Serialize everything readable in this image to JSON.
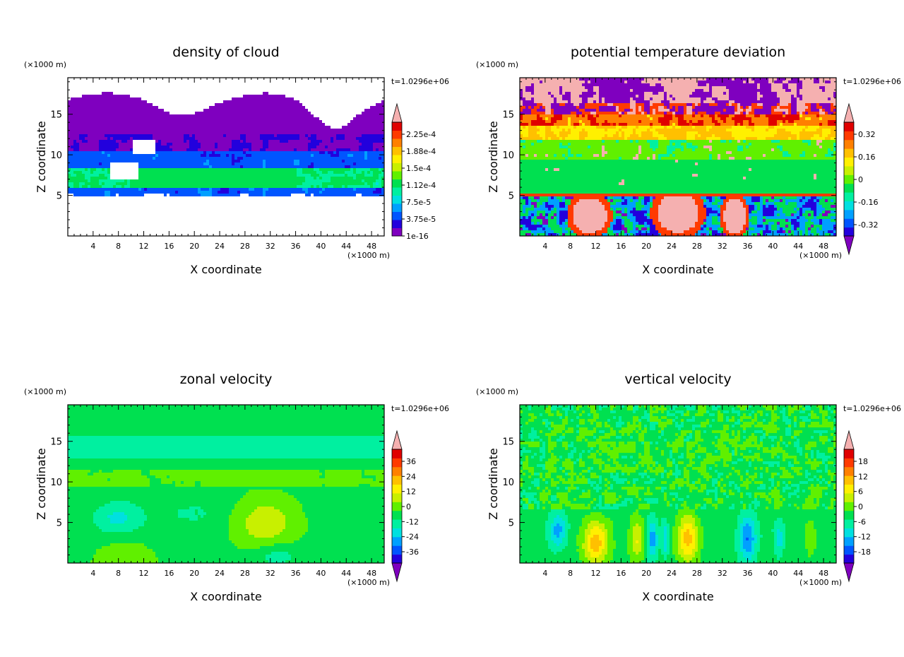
{
  "chart_data": [
    {
      "type": "heatmap",
      "title": "density of cloud",
      "xlabel": "X coordinate",
      "ylabel": "Z coordinate",
      "x_units": "(×1000 m)",
      "y_units": "(×1000 m)",
      "time_label": "t=1.0296e+06",
      "xlim": [
        0,
        50
      ],
      "ylim": [
        0,
        19.5
      ],
      "x_ticks": [
        "4",
        "8",
        "12",
        "16",
        "20",
        "24",
        "28",
        "32",
        "36",
        "40",
        "44",
        "48"
      ],
      "y_ticks": [
        "5",
        "10",
        "15"
      ],
      "colorbar_labels": [
        "1e-16",
        "3.75e-5",
        "7.5e-5",
        "1.12e-4",
        "1.5e-4",
        "1.88e-4",
        "2.25e-4"
      ],
      "colorbar_arrow_low": false
    },
    {
      "type": "heatmap",
      "title": "potential temperature deviation",
      "xlabel": "X coordinate",
      "ylabel": "Z coordinate",
      "x_units": "(×1000 m)",
      "y_units": "(×1000 m)",
      "time_label": "t=1.0296e+06",
      "xlim": [
        0,
        50
      ],
      "ylim": [
        0,
        19.5
      ],
      "x_ticks": [
        "4",
        "8",
        "12",
        "16",
        "20",
        "24",
        "28",
        "32",
        "36",
        "40",
        "44",
        "48"
      ],
      "y_ticks": [
        "5",
        "10",
        "15"
      ],
      "colorbar_labels": [
        "-0.32",
        "-0.16",
        "0",
        "0.16",
        "0.32"
      ],
      "colorbar_arrow_low": true
    },
    {
      "type": "heatmap",
      "title": "zonal velocity",
      "xlabel": "X coordinate",
      "ylabel": "Z coordinate",
      "x_units": "(×1000 m)",
      "y_units": "(×1000 m)",
      "time_label": "t=1.0296e+06",
      "xlim": [
        0,
        50
      ],
      "ylim": [
        0,
        19.5
      ],
      "x_ticks": [
        "4",
        "8",
        "12",
        "16",
        "20",
        "24",
        "28",
        "32",
        "36",
        "40",
        "44",
        "48"
      ],
      "y_ticks": [
        "5",
        "10",
        "15"
      ],
      "colorbar_labels": [
        "-36",
        "-24",
        "-12",
        "0",
        "12",
        "24",
        "36"
      ],
      "colorbar_arrow_low": true
    },
    {
      "type": "heatmap",
      "title": "vertical velocity",
      "xlabel": "X coordinate",
      "ylabel": "Z coordinate",
      "x_units": "(×1000 m)",
      "y_units": "(×1000 m)",
      "time_label": "t=1.0296e+06",
      "xlim": [
        0,
        50
      ],
      "ylim": [
        0,
        19.5
      ],
      "x_ticks": [
        "4",
        "8",
        "12",
        "16",
        "20",
        "24",
        "28",
        "32",
        "36",
        "40",
        "44",
        "48"
      ],
      "y_ticks": [
        "5",
        "10",
        "15"
      ],
      "colorbar_labels": [
        "-18",
        "-12",
        "-6",
        "0",
        "6",
        "12",
        "18"
      ],
      "colorbar_arrow_low": true
    }
  ]
}
